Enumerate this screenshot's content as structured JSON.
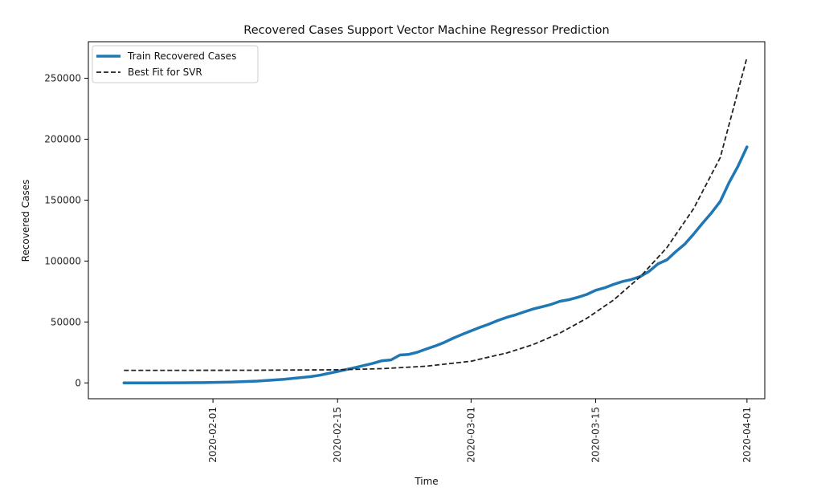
{
  "chart_data": {
    "type": "line",
    "title": "Recovered Cases Support Vector Machine Regressor Prediction",
    "xlabel": "Time",
    "ylabel": "Recovered Cases",
    "xlim": [
      "2020-01-18",
      "2020-04-03"
    ],
    "ylim": [
      -13000,
      280000
    ],
    "grid": false,
    "legend_position": "upper-left",
    "x_ticks": [
      "2020-02-01",
      "2020-02-15",
      "2020-03-01",
      "2020-03-15",
      "2020-04-01"
    ],
    "y_ticks": [
      0,
      50000,
      100000,
      150000,
      200000,
      250000
    ],
    "series": [
      {
        "name": "Train Recovered Cases",
        "color": "#1f77b4",
        "style": "solid",
        "points": [
          [
            "2020-01-22",
            28
          ],
          [
            "2020-01-25",
            39
          ],
          [
            "2020-01-28",
            107
          ],
          [
            "2020-01-31",
            222
          ],
          [
            "2020-02-03",
            623
          ],
          [
            "2020-02-06",
            1487
          ],
          [
            "2020-02-09",
            2920
          ],
          [
            "2020-02-12",
            5150
          ],
          [
            "2020-02-13",
            6295
          ],
          [
            "2020-02-15",
            9395
          ],
          [
            "2020-02-17",
            12583
          ],
          [
            "2020-02-19",
            16121
          ],
          [
            "2020-02-20",
            18177
          ],
          [
            "2020-02-21",
            18890
          ],
          [
            "2020-02-22",
            22886
          ],
          [
            "2020-02-23",
            23394
          ],
          [
            "2020-02-24",
            25227
          ],
          [
            "2020-02-25",
            27905
          ],
          [
            "2020-02-26",
            30384
          ],
          [
            "2020-02-27",
            33277
          ],
          [
            "2020-02-28",
            36711
          ],
          [
            "2020-02-29",
            39782
          ],
          [
            "2020-03-01",
            42716
          ],
          [
            "2020-03-02",
            45602
          ],
          [
            "2020-03-03",
            48228
          ],
          [
            "2020-03-04",
            51170
          ],
          [
            "2020-03-05",
            53796
          ],
          [
            "2020-03-06",
            55865
          ],
          [
            "2020-03-07",
            58358
          ],
          [
            "2020-03-08",
            60694
          ],
          [
            "2020-03-09",
            62494
          ],
          [
            "2020-03-10",
            64404
          ],
          [
            "2020-03-11",
            67003
          ],
          [
            "2020-03-12",
            68324
          ],
          [
            "2020-03-13",
            70251
          ],
          [
            "2020-03-14",
            72624
          ],
          [
            "2020-03-15",
            76034
          ],
          [
            "2020-03-16",
            78088
          ],
          [
            "2020-03-17",
            80840
          ],
          [
            "2020-03-18",
            83207
          ],
          [
            "2020-03-19",
            84854
          ],
          [
            "2020-03-20",
            87256
          ],
          [
            "2020-03-21",
            91576
          ],
          [
            "2020-03-22",
            97704
          ],
          [
            "2020-03-23",
            101000
          ],
          [
            "2020-03-24",
            107700
          ],
          [
            "2020-03-25",
            113800
          ],
          [
            "2020-03-26",
            122100
          ],
          [
            "2020-03-27",
            130900
          ],
          [
            "2020-03-28",
            139400
          ],
          [
            "2020-03-29",
            149000
          ],
          [
            "2020-03-30",
            164600
          ],
          [
            "2020-03-31",
            178000
          ],
          [
            "2020-04-01",
            193700
          ]
        ]
      },
      {
        "name": "Best Fit for SVR",
        "color": "#222222",
        "style": "dashed",
        "points": [
          [
            "2020-01-22",
            10300
          ],
          [
            "2020-01-29",
            10310
          ],
          [
            "2020-02-05",
            10400
          ],
          [
            "2020-02-10",
            10550
          ],
          [
            "2020-02-15",
            10800
          ],
          [
            "2020-02-20",
            11700
          ],
          [
            "2020-02-25",
            13700
          ],
          [
            "2020-03-01",
            17800
          ],
          [
            "2020-03-05",
            24500
          ],
          [
            "2020-03-08",
            31500
          ],
          [
            "2020-03-11",
            41000
          ],
          [
            "2020-03-14",
            53000
          ],
          [
            "2020-03-17",
            68000
          ],
          [
            "2020-03-20",
            87000
          ],
          [
            "2020-03-23",
            111000
          ],
          [
            "2020-03-26",
            143000
          ],
          [
            "2020-03-29",
            185000
          ],
          [
            "2020-04-01",
            267000
          ]
        ]
      }
    ]
  }
}
